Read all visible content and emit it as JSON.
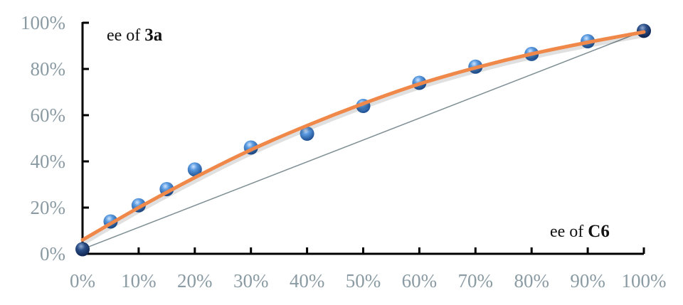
{
  "chart_data": {
    "type": "scatter",
    "title": "",
    "ylabel_prefix": "ee of ",
    "ylabel_bold": "3a",
    "xlabel_prefix": "ee of ",
    "xlabel_bold": "C6",
    "xlim": [
      0,
      100
    ],
    "ylim": [
      0,
      100
    ],
    "grid": false,
    "x_ticks": [
      "0%",
      "10%",
      "20%",
      "30%",
      "40%",
      "50%",
      "60%",
      "70%",
      "80%",
      "90%",
      "100%"
    ],
    "y_ticks": [
      "0%",
      "20%",
      "40%",
      "60%",
      "80%",
      "100%"
    ],
    "points": {
      "x": [
        0,
        5,
        10,
        15,
        20,
        30,
        40,
        50,
        60,
        70,
        80,
        90,
        100
      ],
      "y": [
        2,
        14,
        21,
        28,
        36.5,
        46,
        52,
        64,
        74,
        81,
        86.5,
        92,
        96.5
      ]
    },
    "trendline": {
      "x": [
        0,
        10,
        20,
        30,
        40,
        50,
        60,
        70,
        80,
        90,
        100
      ],
      "y": [
        6,
        20,
        33,
        45,
        55.5,
        65,
        73.5,
        80.5,
        86.5,
        91.5,
        96
      ]
    },
    "reference_line": {
      "x": [
        0,
        100
      ],
      "y": [
        2,
        96.5
      ]
    },
    "colors": {
      "marker": "#3f7fc8",
      "trendline": "#f0884a",
      "reference_line": "#7f8f94",
      "tick_text": "#8a9ba3",
      "axis": "#000000"
    }
  }
}
